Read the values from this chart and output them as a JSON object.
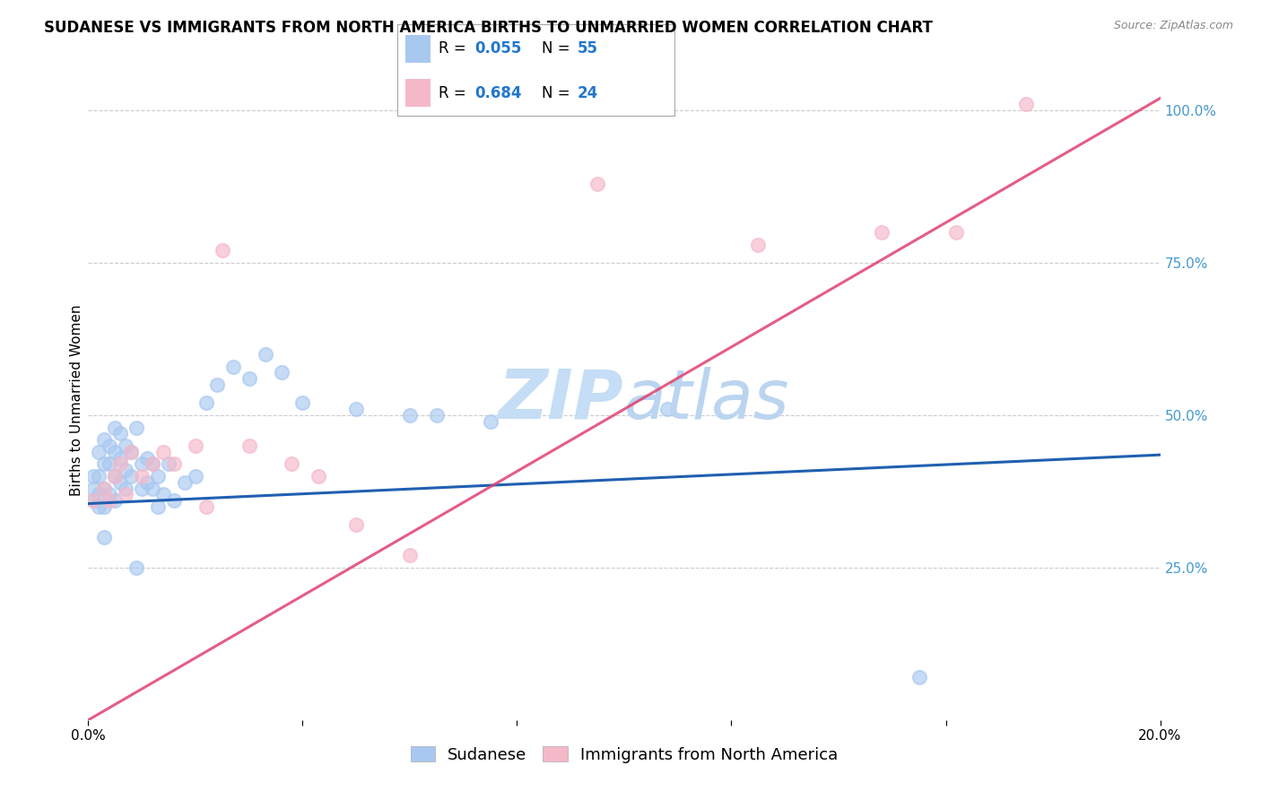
{
  "title": "SUDANESE VS IMMIGRANTS FROM NORTH AMERICA BIRTHS TO UNMARRIED WOMEN CORRELATION CHART",
  "source": "Source: ZipAtlas.com",
  "ylabel_label": "Births to Unmarried Women",
  "xmin": 0.0,
  "xmax": 0.2,
  "ymin": 0.0,
  "ymax": 1.05,
  "series1_label": "Sudanese",
  "series2_label": "Immigrants from North America",
  "series1_R": "0.055",
  "series1_N": "55",
  "series2_R": "0.684",
  "series2_N": "24",
  "series1_color": "#a8c8f0",
  "series2_color": "#f5b8c8",
  "series1_line_color": "#2060b0",
  "series2_line_color": "#e0406080",
  "background_color": "#ffffff",
  "grid_color": "#cccccc",
  "tick_color_y": "#4499cc",
  "title_fontsize": 12,
  "axis_label_fontsize": 11,
  "tick_fontsize": 11,
  "legend_fontsize": 13,
  "watermark_fontsize": 55,
  "series1_line_y0": 0.355,
  "series1_line_y1": 0.435,
  "series2_line_y0": 0.0,
  "series2_line_y1": 1.02,
  "series1_x": [
    0.001,
    0.001,
    0.001,
    0.002,
    0.002,
    0.002,
    0.002,
    0.003,
    0.003,
    0.003,
    0.003,
    0.004,
    0.004,
    0.004,
    0.005,
    0.005,
    0.005,
    0.005,
    0.006,
    0.006,
    0.006,
    0.007,
    0.007,
    0.007,
    0.008,
    0.008,
    0.009,
    0.01,
    0.01,
    0.011,
    0.011,
    0.012,
    0.012,
    0.013,
    0.013,
    0.014,
    0.015,
    0.016,
    0.018,
    0.02,
    0.022,
    0.024,
    0.027,
    0.03,
    0.033,
    0.036,
    0.04,
    0.05,
    0.06,
    0.065,
    0.075,
    0.108,
    0.155,
    0.003,
    0.009
  ],
  "series1_y": [
    0.36,
    0.38,
    0.4,
    0.35,
    0.37,
    0.4,
    0.44,
    0.35,
    0.38,
    0.42,
    0.46,
    0.37,
    0.42,
    0.45,
    0.36,
    0.4,
    0.44,
    0.48,
    0.39,
    0.43,
    0.47,
    0.38,
    0.41,
    0.45,
    0.4,
    0.44,
    0.48,
    0.38,
    0.42,
    0.39,
    0.43,
    0.38,
    0.42,
    0.35,
    0.4,
    0.37,
    0.42,
    0.36,
    0.39,
    0.4,
    0.52,
    0.55,
    0.58,
    0.56,
    0.6,
    0.57,
    0.52,
    0.51,
    0.5,
    0.5,
    0.49,
    0.51,
    0.07,
    0.3,
    0.25
  ],
  "series2_x": [
    0.001,
    0.003,
    0.004,
    0.005,
    0.006,
    0.007,
    0.008,
    0.01,
    0.012,
    0.014,
    0.016,
    0.02,
    0.022,
    0.025,
    0.03,
    0.038,
    0.043,
    0.05,
    0.06,
    0.095,
    0.125,
    0.148,
    0.162,
    0.175
  ],
  "series2_y": [
    0.36,
    0.38,
    0.36,
    0.4,
    0.42,
    0.37,
    0.44,
    0.4,
    0.42,
    0.44,
    0.42,
    0.45,
    0.35,
    0.77,
    0.45,
    0.42,
    0.4,
    0.32,
    0.27,
    0.88,
    0.78,
    0.8,
    0.8,
    1.01
  ]
}
